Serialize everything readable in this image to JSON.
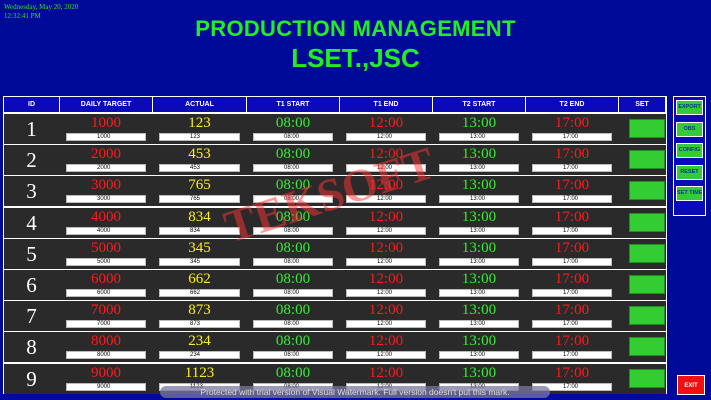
{
  "header": {
    "date": "Wednesday, May 20, 2020",
    "time": "12:32:41 PM",
    "title": "PRODUCTION MANAGEMENT",
    "subtitle": "LSET.,JSC"
  },
  "table": {
    "columns": [
      "ID",
      "DAILY TARGET",
      "ACTUAL",
      "T1 START",
      "T1 END",
      "T2 START",
      "T2 END",
      "SET"
    ],
    "rows": [
      {
        "id": "1",
        "target": "1000",
        "actual": "123",
        "t1start": "08:00",
        "t1end": "12:00",
        "t2start": "13:00",
        "t2end": "17:00"
      },
      {
        "id": "2",
        "target": "2000",
        "actual": "453",
        "t1start": "08:00",
        "t1end": "12:00",
        "t2start": "13:00",
        "t2end": "17:00"
      },
      {
        "id": "3",
        "target": "3000",
        "actual": "765",
        "t1start": "08:00",
        "t1end": "12:00",
        "t2start": "13:00",
        "t2end": "17:00"
      },
      {
        "id": "4",
        "target": "4000",
        "actual": "834",
        "t1start": "08:00",
        "t1end": "12:00",
        "t2start": "13:00",
        "t2end": "17:00"
      },
      {
        "id": "5",
        "target": "5000",
        "actual": "345",
        "t1start": "08:00",
        "t1end": "12:00",
        "t2start": "13:00",
        "t2end": "17:00"
      },
      {
        "id": "6",
        "target": "6000",
        "actual": "662",
        "t1start": "08:00",
        "t1end": "12:00",
        "t2start": "13:00",
        "t2end": "17:00"
      },
      {
        "id": "7",
        "target": "7000",
        "actual": "873",
        "t1start": "08:00",
        "t1end": "12:00",
        "t2start": "13:00",
        "t2end": "17:00"
      },
      {
        "id": "8",
        "target": "8000",
        "actual": "234",
        "t1start": "08:00",
        "t1end": "12:00",
        "t2start": "13:00",
        "t2end": "17:00"
      },
      {
        "id": "9",
        "target": "9000",
        "actual": "1123",
        "t1start": "08:00",
        "t1end": "12:00",
        "t2start": "13:00",
        "t2end": "17:00"
      }
    ]
  },
  "sidebar": {
    "buttons": [
      "EXPORT",
      "OBS",
      "CONFIG",
      "RESET",
      "SET TIME"
    ],
    "exit": "EXIT"
  },
  "overlay": {
    "watermark": "TEKSOFT",
    "notice": "Protected with trial version of Visual Watermark. Full version doesn't put this mark."
  },
  "colors": {
    "background": "#000a99",
    "title": "#22ee22",
    "target": "#ff1a1a",
    "actual": "#ffee22",
    "start": "#33ee33",
    "end": "#ff1a1a",
    "header": "#0a0ab8",
    "set_button": "#33cc33",
    "exit_button": "#ee1111"
  }
}
